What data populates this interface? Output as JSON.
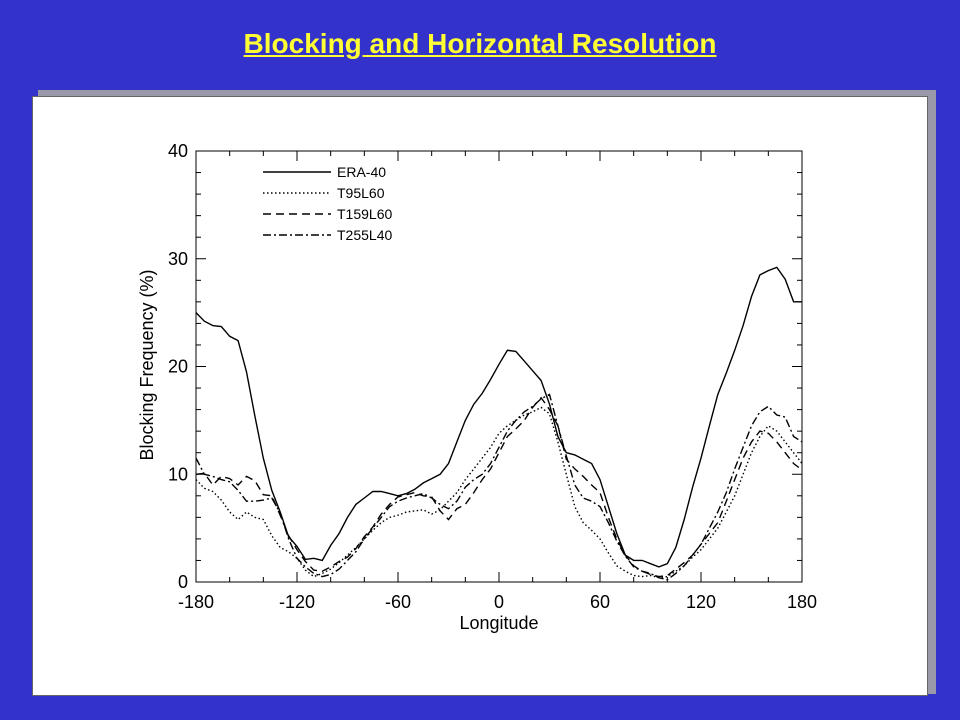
{
  "slide": {
    "title": "Blocking and Horizontal Resolution"
  },
  "colors": {
    "background": "#3333cc",
    "title": "#ffff33",
    "panel": "#ffffff",
    "line": "#000000"
  },
  "chart_data": {
    "type": "line",
    "xlabel": "Longitude",
    "ylabel": "Blocking Frequency (%)",
    "xlim": [
      -180,
      180
    ],
    "ylim": [
      0,
      40
    ],
    "xticks": [
      -180,
      -120,
      -60,
      0,
      60,
      120,
      180
    ],
    "yticks": [
      0,
      10,
      20,
      30,
      40
    ],
    "legend_position": "top-left",
    "grid": false,
    "series": [
      {
        "name": "ERA-40",
        "style": "solid",
        "x": [
          -180,
          -175,
          -170,
          -165,
          -160,
          -155,
          -150,
          -145,
          -140,
          -135,
          -130,
          -125,
          -120,
          -115,
          -110,
          -105,
          -100,
          -95,
          -90,
          -85,
          -80,
          -75,
          -70,
          -65,
          -60,
          -55,
          -50,
          -45,
          -40,
          -35,
          -30,
          -25,
          -20,
          -15,
          -10,
          -5,
          0,
          5,
          10,
          15,
          20,
          25,
          30,
          35,
          40,
          45,
          50,
          55,
          60,
          65,
          70,
          75,
          80,
          85,
          90,
          95,
          100,
          105,
          110,
          115,
          120,
          125,
          130,
          135,
          140,
          145,
          150,
          155,
          160,
          165,
          170,
          175,
          180
        ],
        "y": [
          25,
          24.2,
          23.8,
          23.7,
          22.8,
          22.4,
          19.5,
          15.4,
          11.5,
          8.5,
          6.5,
          4.2,
          3.3,
          2.1,
          2.2,
          2,
          3.4,
          4.5,
          6,
          7.2,
          7.8,
          8.4,
          8.4,
          8.2,
          8,
          8.2,
          8.6,
          9.2,
          9.6,
          10,
          11,
          13,
          15,
          16.5,
          17.5,
          18.8,
          20.2,
          21.5,
          21.4,
          20.5,
          19.6,
          18.7,
          16.5,
          13.5,
          12,
          11.8,
          11.4,
          11,
          9.5,
          7,
          4.5,
          2.5,
          2,
          2,
          1.7,
          1.4,
          1.7,
          3.2,
          5.8,
          8.8,
          11.5,
          14.5,
          17.4,
          19.4,
          21.5,
          23.8,
          26.5,
          28.5,
          28.9,
          29.2,
          28.1,
          26,
          26
        ]
      },
      {
        "name": "T95L60",
        "style": "dotted",
        "x": [
          -180,
          -175,
          -170,
          -165,
          -160,
          -155,
          -150,
          -145,
          -140,
          -135,
          -130,
          -125,
          -120,
          -115,
          -110,
          -105,
          -100,
          -95,
          -90,
          -85,
          -80,
          -75,
          -70,
          -65,
          -60,
          -55,
          -50,
          -45,
          -40,
          -35,
          -30,
          -25,
          -20,
          -15,
          -10,
          -5,
          0,
          5,
          10,
          15,
          20,
          25,
          30,
          35,
          40,
          45,
          50,
          55,
          60,
          65,
          70,
          75,
          80,
          85,
          90,
          95,
          100,
          105,
          110,
          115,
          120,
          125,
          130,
          135,
          140,
          145,
          150,
          155,
          160,
          165,
          170,
          175,
          180
        ],
        "y": [
          9.5,
          8.7,
          8.4,
          7.6,
          6.5,
          5.8,
          6.5,
          6,
          5.8,
          4.3,
          3.2,
          2.8,
          2.2,
          1.1,
          0.5,
          0.8,
          1.2,
          1.8,
          2.5,
          3.2,
          4,
          4.8,
          5.5,
          6,
          6.2,
          6.5,
          6.6,
          6.7,
          6.3,
          6.7,
          7.5,
          8.3,
          9.5,
          10.5,
          11.5,
          12.5,
          13.8,
          14.5,
          15,
          15.5,
          15.8,
          16.2,
          15.6,
          13,
          10,
          7,
          5.5,
          4.8,
          4,
          2.7,
          1.5,
          1,
          0.6,
          0.5,
          0.6,
          0.4,
          0.5,
          1,
          1.5,
          2.3,
          3,
          4,
          5,
          6.5,
          8,
          10,
          12,
          13.5,
          14.5,
          14,
          13,
          12,
          11
        ]
      },
      {
        "name": "T159L60",
        "style": "dashed",
        "x": [
          -180,
          -175,
          -170,
          -165,
          -160,
          -155,
          -150,
          -145,
          -140,
          -135,
          -130,
          -125,
          -120,
          -115,
          -110,
          -105,
          -100,
          -95,
          -90,
          -85,
          -80,
          -75,
          -70,
          -65,
          -60,
          -55,
          -50,
          -45,
          -40,
          -35,
          -30,
          -25,
          -20,
          -15,
          -10,
          -5,
          0,
          5,
          10,
          15,
          20,
          25,
          30,
          35,
          40,
          45,
          50,
          55,
          60,
          65,
          70,
          75,
          80,
          85,
          90,
          95,
          100,
          105,
          110,
          115,
          120,
          125,
          130,
          135,
          140,
          145,
          150,
          155,
          160,
          165,
          170,
          175,
          180
        ],
        "y": [
          10,
          10.1,
          9,
          9.8,
          9.6,
          9,
          9.8,
          9.4,
          8.1,
          8,
          6.2,
          4.3,
          3,
          1.9,
          1.1,
          1,
          1.4,
          1.9,
          2.3,
          3.1,
          4.2,
          5.1,
          6.3,
          7.2,
          7.9,
          8.1,
          8.3,
          8,
          7.9,
          6.6,
          5.8,
          6.8,
          7.2,
          8.3,
          9.5,
          10.5,
          12,
          13.5,
          14.2,
          15,
          16.2,
          17.1,
          16,
          14.5,
          11.4,
          10.5,
          9.8,
          9,
          8.3,
          6,
          4,
          2.5,
          1.5,
          1,
          0.7,
          0.5,
          0.6,
          1.2,
          1.8,
          2.5,
          3.5,
          4.5,
          5.5,
          7.5,
          9.5,
          11.5,
          13,
          14,
          13.8,
          13,
          12,
          11,
          10.4
        ]
      },
      {
        "name": "T255L40",
        "style": "dashdot",
        "x": [
          -180,
          -175,
          -170,
          -165,
          -160,
          -155,
          -150,
          -145,
          -140,
          -135,
          -130,
          -125,
          -120,
          -115,
          -110,
          -105,
          -100,
          -95,
          -90,
          -85,
          -80,
          -75,
          -70,
          -65,
          -60,
          -55,
          -50,
          -45,
          -40,
          -35,
          -30,
          -25,
          -20,
          -15,
          -10,
          -5,
          0,
          5,
          10,
          15,
          20,
          25,
          30,
          35,
          40,
          45,
          50,
          55,
          60,
          65,
          70,
          75,
          80,
          85,
          90,
          95,
          100,
          105,
          110,
          115,
          120,
          125,
          130,
          135,
          140,
          145,
          150,
          155,
          160,
          165,
          170,
          175,
          180
        ],
        "y": [
          11.5,
          10,
          9.8,
          9.5,
          9.3,
          8.5,
          7.5,
          7.5,
          7.6,
          7.8,
          6.4,
          4,
          2.2,
          1.4,
          0.8,
          0.5,
          0.7,
          1.2,
          2,
          2.8,
          4,
          5,
          6,
          7,
          7.5,
          7.8,
          8,
          8.2,
          7.8,
          7.2,
          6.8,
          7.5,
          8.8,
          9.5,
          10,
          11,
          12.5,
          14,
          15,
          15.8,
          16.3,
          17,
          17.4,
          14.5,
          11.7,
          9,
          7.8,
          7.5,
          7,
          5.5,
          3.8,
          2.4,
          1.4,
          1,
          0.8,
          0.4,
          0.2,
          0.8,
          1.5,
          2.5,
          3.5,
          5,
          6.5,
          8.3,
          10.5,
          12.5,
          14.5,
          15.8,
          16.3,
          15.5,
          15.3,
          13.5,
          13
        ]
      }
    ]
  }
}
